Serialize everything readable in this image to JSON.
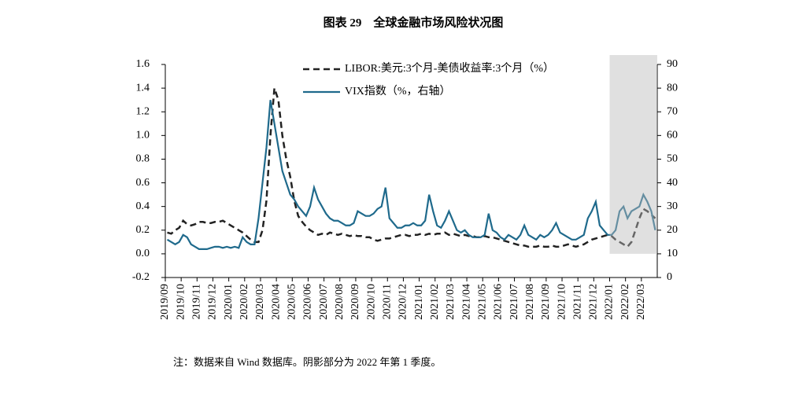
{
  "chart_data": {
    "type": "line",
    "title": "图表 29　全球金融市场风险状况图",
    "note": "注：数据来自 Wind 数据库。阴影部分为 2022 年第 1 季度。",
    "categories": [
      "2019/09",
      null,
      null,
      null,
      "2019/10",
      null,
      null,
      null,
      "2019/11",
      null,
      null,
      null,
      "2019/12",
      null,
      null,
      null,
      "2020/01",
      null,
      null,
      null,
      "2020/02",
      null,
      null,
      null,
      "2020/03",
      null,
      null,
      null,
      "2020/04",
      null,
      null,
      null,
      "2020/05",
      null,
      null,
      null,
      "2020/06",
      null,
      null,
      null,
      "2020/07",
      null,
      null,
      null,
      "2020/08",
      null,
      null,
      null,
      "2020/09",
      null,
      null,
      null,
      "2020/10",
      null,
      null,
      null,
      "2020/11",
      null,
      null,
      null,
      "2020/12",
      null,
      null,
      null,
      "2021/01",
      null,
      null,
      null,
      "2021/02",
      null,
      null,
      null,
      "2021/03",
      null,
      null,
      null,
      "2021/04",
      null,
      null,
      null,
      "2021/05",
      null,
      null,
      null,
      "2021/06",
      null,
      null,
      null,
      "2021/07",
      null,
      null,
      null,
      "2021/08",
      null,
      null,
      null,
      "2021/09",
      null,
      null,
      null,
      "2021/10",
      null,
      null,
      null,
      "2021/11",
      null,
      null,
      null,
      "2021/12",
      null,
      null,
      null,
      "2022/01",
      null,
      null,
      null,
      "2022/02",
      null,
      null,
      null,
      "2022/03",
      null,
      null,
      null
    ],
    "shade_start": "2022/01",
    "series": [
      {
        "name": "LIBOR:美元:3个月-美债收益率:3个月（%）",
        "color": "#222222",
        "dash": true,
        "axis": "y",
        "values": [
          0.18,
          0.17,
          0.2,
          0.22,
          0.28,
          0.25,
          0.24,
          0.25,
          0.27,
          0.27,
          0.26,
          0.26,
          0.27,
          0.27,
          0.28,
          0.26,
          0.24,
          0.22,
          0.2,
          0.18,
          0.15,
          0.12,
          0.1,
          0.1,
          0.2,
          0.45,
          1.0,
          1.4,
          1.3,
          1.0,
          0.8,
          0.65,
          0.45,
          0.32,
          0.27,
          0.23,
          0.2,
          0.18,
          0.16,
          0.17,
          0.16,
          0.18,
          0.17,
          0.16,
          0.17,
          0.16,
          0.15,
          0.16,
          0.15,
          0.15,
          0.14,
          0.14,
          0.12,
          0.11,
          0.12,
          0.13,
          0.13,
          0.14,
          0.15,
          0.16,
          0.16,
          0.15,
          0.16,
          0.16,
          0.17,
          0.16,
          0.17,
          0.16,
          0.17,
          0.17,
          0.18,
          0.16,
          0.17,
          0.16,
          0.15,
          0.16,
          0.15,
          0.15,
          0.14,
          0.14,
          0.15,
          0.14,
          0.14,
          0.13,
          0.12,
          0.11,
          0.1,
          0.09,
          0.08,
          0.07,
          0.07,
          0.06,
          0.06,
          0.06,
          0.07,
          0.06,
          0.06,
          0.07,
          0.06,
          0.06,
          0.07,
          0.08,
          0.07,
          0.06,
          0.07,
          0.08,
          0.1,
          0.12,
          0.13,
          0.14,
          0.15,
          0.16,
          0.15,
          0.12,
          0.1,
          0.08,
          0.06,
          0.1,
          0.2,
          0.3,
          0.38,
          0.36,
          0.33,
          0.3
        ]
      },
      {
        "name": "VIX指数（%，右轴）",
        "color": "#1f6a8c",
        "dash": false,
        "axis": "y2",
        "values": [
          16,
          15,
          14,
          15,
          18,
          17,
          14,
          13,
          12,
          12,
          12,
          12.5,
          13,
          13,
          12.5,
          13,
          12.5,
          13,
          12.5,
          17,
          15,
          14,
          14,
          25,
          40,
          55,
          75,
          65,
          55,
          45,
          40,
          35,
          33,
          30,
          28,
          26,
          30,
          38,
          33,
          30,
          27,
          25,
          24,
          24,
          23,
          22,
          22,
          23,
          28,
          27,
          26,
          26,
          27,
          29,
          30,
          38,
          25,
          23,
          21,
          21,
          22,
          22,
          23,
          22,
          22,
          24,
          35,
          28,
          22,
          21,
          24,
          28,
          24,
          20,
          19,
          20,
          18,
          17,
          17,
          17,
          18,
          27,
          20,
          19,
          17,
          16,
          18,
          17,
          16,
          18,
          22,
          18,
          17,
          16,
          18,
          17,
          18,
          20,
          23,
          19,
          18,
          17,
          16,
          16,
          17,
          18,
          25,
          28,
          32,
          22,
          20,
          18,
          18,
          20,
          28,
          30,
          25,
          28,
          29,
          30,
          35,
          32,
          28,
          20
        ]
      }
    ],
    "ylim": [
      -0.2,
      1.6
    ],
    "yticks": [
      -0.2,
      {
        "value": 0,
        "label": "0.0"
      },
      0.2,
      0.4,
      0.6,
      0.8,
      {
        "value": 1,
        "label": "1.0"
      },
      1.2,
      1.4,
      1.6
    ],
    "y2lim": [
      0,
      90
    ],
    "y2ticks": [
      0,
      10,
      20,
      30,
      40,
      50,
      60,
      70,
      80,
      90
    ]
  }
}
